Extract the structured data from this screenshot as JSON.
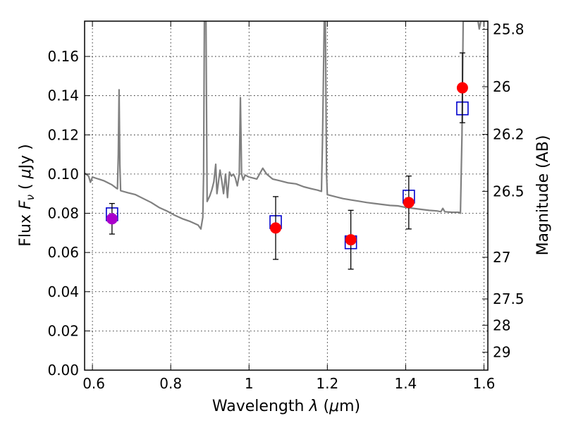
{
  "chart_data": {
    "type": "scatter",
    "xlabel_main": "Wavelength",
    "xlabel_symbol": "λ",
    "xlabel_unit_open": "(",
    "xlabel_unit_mu": "μ",
    "xlabel_unit_rest": "m)",
    "ylabel_main": "Flux",
    "ylabel_symbol": "F",
    "ylabel_symbol_sub": "ν",
    "ylabel_unit_open": "(",
    "ylabel_unit_mu": "μ",
    "ylabel_unit_rest": "Jy )",
    "ylabel_right": "Magnitude (AB)",
    "xlim": [
      0.58,
      1.61
    ],
    "ylim": [
      0.0,
      0.178
    ],
    "grid": true,
    "x_ticks": [
      {
        "value": 0.6,
        "label": ""
      },
      {
        "value": 0.8,
        "label": "0.8"
      },
      {
        "value": 1.0,
        "label": "1"
      },
      {
        "value": 1.2,
        "label": "1.2"
      },
      {
        "value": 1.4,
        "label": "1.4"
      },
      {
        "value": 1.6,
        "label": "1.6"
      }
    ],
    "x_label_first": "0.6",
    "y_ticks": [
      {
        "value": 0.0,
        "label": "0.00"
      },
      {
        "value": 0.02,
        "label": "0.02"
      },
      {
        "value": 0.04,
        "label": "0.04"
      },
      {
        "value": 0.06,
        "label": "0.06"
      },
      {
        "value": 0.08,
        "label": "0.08"
      },
      {
        "value": 0.1,
        "label": "0.10"
      },
      {
        "value": 0.12,
        "label": "0.12"
      },
      {
        "value": 0.14,
        "label": "0.14"
      },
      {
        "value": 0.16,
        "label": "0.16"
      }
    ],
    "right_ticks": [
      {
        "mag": 25.8,
        "label": "25.8"
      },
      {
        "mag": 26.0,
        "label": "26"
      },
      {
        "mag": 26.2,
        "label": "26.2"
      },
      {
        "mag": 26.5,
        "label": "26.5"
      },
      {
        "mag": 27.0,
        "label": "27"
      },
      {
        "mag": 27.5,
        "label": "27.5"
      },
      {
        "mag": 28.0,
        "label": "28"
      },
      {
        "mag": 29.0,
        "label": "29"
      }
    ],
    "series": [
      {
        "kind": "observed",
        "color": "#ff0000",
        "points": [
          {
            "x": 0.65,
            "y": 0.0772,
            "err": 0.0078,
            "color": "#aa00cc"
          },
          {
            "x": 1.068,
            "y": 0.0725,
            "err": 0.016
          },
          {
            "x": 1.26,
            "y": 0.0665,
            "err": 0.015
          },
          {
            "x": 1.408,
            "y": 0.0855,
            "err": 0.0135
          },
          {
            "x": 1.545,
            "y": 0.144,
            "err": 0.0178
          }
        ]
      },
      {
        "kind": "model-photometry",
        "color": "#0000cc",
        "points": [
          {
            "x": 0.65,
            "y": 0.0795
          },
          {
            "x": 1.068,
            "y": 0.0755
          },
          {
            "x": 1.26,
            "y": 0.0652
          },
          {
            "x": 1.408,
            "y": 0.0885
          },
          {
            "x": 1.545,
            "y": 0.1335
          }
        ]
      },
      {
        "kind": "template-spectrum",
        "color": "#808080",
        "points": [
          [
            0.58,
            0.1005
          ],
          [
            0.59,
            0.099
          ],
          [
            0.595,
            0.0958
          ],
          [
            0.6,
            0.0985
          ],
          [
            0.61,
            0.0978
          ],
          [
            0.62,
            0.0972
          ],
          [
            0.63,
            0.0965
          ],
          [
            0.64,
            0.0955
          ],
          [
            0.65,
            0.0945
          ],
          [
            0.66,
            0.093
          ],
          [
            0.664,
            0.0925
          ],
          [
            0.666,
            0.11
          ],
          [
            0.668,
            0.143
          ],
          [
            0.67,
            0.105
          ],
          [
            0.672,
            0.0915
          ],
          [
            0.69,
            0.0905
          ],
          [
            0.71,
            0.0895
          ],
          [
            0.73,
            0.0875
          ],
          [
            0.75,
            0.0855
          ],
          [
            0.77,
            0.083
          ],
          [
            0.79,
            0.0812
          ],
          [
            0.81,
            0.079
          ],
          [
            0.83,
            0.0772
          ],
          [
            0.85,
            0.0758
          ],
          [
            0.87,
            0.074
          ],
          [
            0.877,
            0.072
          ],
          [
            0.882,
            0.078
          ],
          [
            0.884,
            0.1
          ],
          [
            0.886,
            0.178
          ],
          [
            0.89,
            0.178
          ],
          [
            0.893,
            0.086
          ],
          [
            0.9,
            0.089
          ],
          [
            0.905,
            0.092
          ],
          [
            0.91,
            0.096
          ],
          [
            0.915,
            0.105
          ],
          [
            0.918,
            0.09
          ],
          [
            0.922,
            0.096
          ],
          [
            0.926,
            0.102
          ],
          [
            0.93,
            0.097
          ],
          [
            0.935,
            0.09
          ],
          [
            0.94,
            0.1
          ],
          [
            0.945,
            0.088
          ],
          [
            0.95,
            0.101
          ],
          [
            0.955,
            0.099
          ],
          [
            0.96,
            0.1
          ],
          [
            0.965,
            0.098
          ],
          [
            0.97,
            0.094
          ],
          [
            0.975,
            0.1
          ],
          [
            0.978,
            0.139
          ],
          [
            0.981,
            0.1
          ],
          [
            0.985,
            0.097
          ],
          [
            0.99,
            0.0995
          ],
          [
            1.0,
            0.0985
          ],
          [
            1.02,
            0.0975
          ],
          [
            1.035,
            0.103
          ],
          [
            1.045,
            0.1
          ],
          [
            1.06,
            0.0975
          ],
          [
            1.08,
            0.0965
          ],
          [
            1.1,
            0.0955
          ],
          [
            1.12,
            0.095
          ],
          [
            1.14,
            0.0935
          ],
          [
            1.16,
            0.0925
          ],
          [
            1.175,
            0.0918
          ],
          [
            1.185,
            0.0912
          ],
          [
            1.188,
            0.12
          ],
          [
            1.192,
            0.178
          ],
          [
            1.195,
            0.178
          ],
          [
            1.198,
            0.1
          ],
          [
            1.2,
            0.0895
          ],
          [
            1.22,
            0.0885
          ],
          [
            1.24,
            0.0875
          ],
          [
            1.26,
            0.0868
          ],
          [
            1.28,
            0.0862
          ],
          [
            1.3,
            0.0855
          ],
          [
            1.32,
            0.085
          ],
          [
            1.34,
            0.0845
          ],
          [
            1.36,
            0.084
          ],
          [
            1.38,
            0.0838
          ],
          [
            1.4,
            0.083
          ],
          [
            1.42,
            0.0825
          ],
          [
            1.44,
            0.082
          ],
          [
            1.46,
            0.0815
          ],
          [
            1.48,
            0.0812
          ],
          [
            1.49,
            0.0808
          ],
          [
            1.495,
            0.0825
          ],
          [
            1.5,
            0.0808
          ],
          [
            1.52,
            0.0805
          ],
          [
            1.536,
            0.0805
          ],
          [
            1.54,
            0.08
          ],
          [
            1.544,
            0.12
          ],
          [
            1.547,
            0.178
          ],
          [
            1.56,
            0.178
          ],
          [
            1.585,
            0.178
          ],
          [
            1.588,
            0.174
          ],
          [
            1.592,
            0.178
          ],
          [
            1.61,
            0.178
          ]
        ]
      }
    ]
  }
}
